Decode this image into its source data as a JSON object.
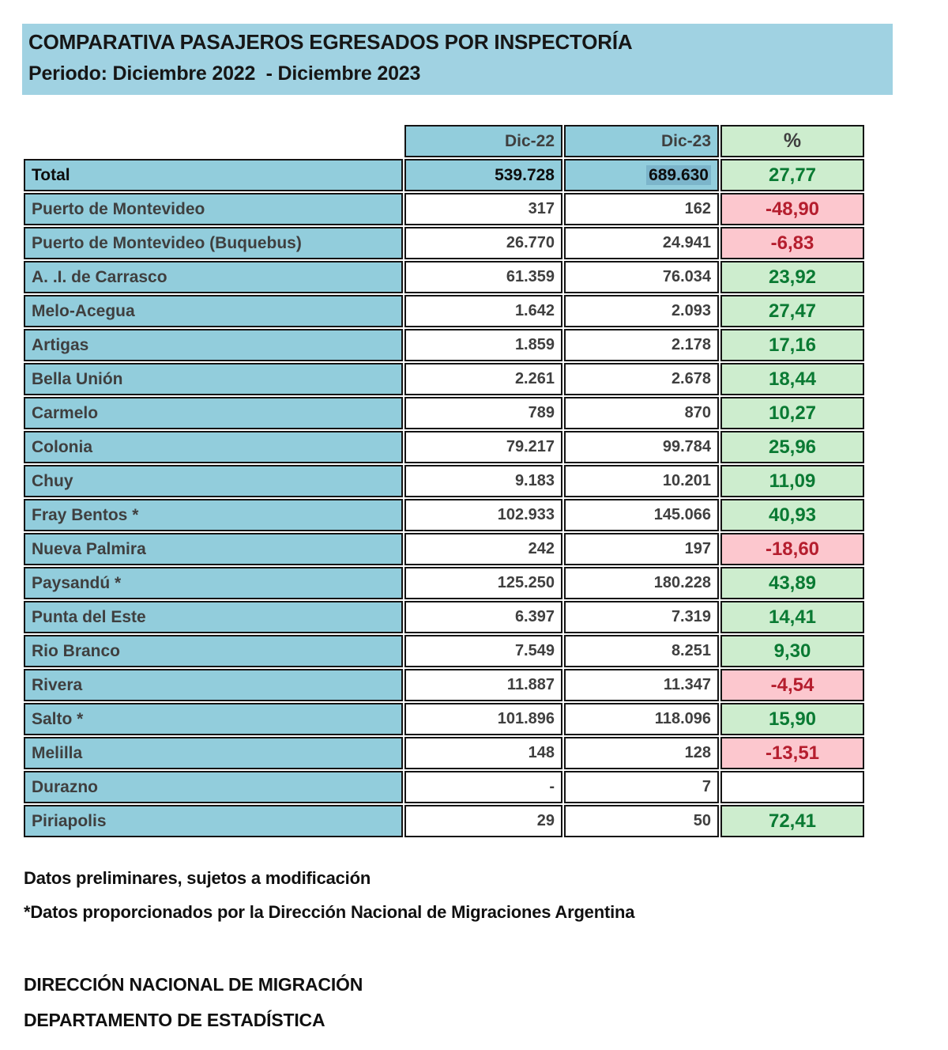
{
  "banner": {
    "title": "COMPARATIVA PASAJEROS EGRESADOS POR INSPECTORÍA",
    "subtitle": "Periodo: Diciembre 2022  - Diciembre 2023"
  },
  "table": {
    "columns": [
      "Dic-22",
      "Dic-23",
      "%"
    ],
    "rows": [
      {
        "label": "Total",
        "dic22": "539.728",
        "dic23": "689.630",
        "pct": "27,77",
        "trend": "up",
        "is_total": true,
        "highlight_dic23": true
      },
      {
        "label": "Puerto de Montevideo",
        "dic22": "317",
        "dic23": "162",
        "pct": "-48,90",
        "trend": "down"
      },
      {
        "label": "Puerto de Montevideo (Buquebus)",
        "dic22": "26.770",
        "dic23": "24.941",
        "pct": "-6,83",
        "trend": "down"
      },
      {
        "label": "A. .I. de Carrasco",
        "dic22": "61.359",
        "dic23": "76.034",
        "pct": "23,92",
        "trend": "up"
      },
      {
        "label": "Melo-Acegua",
        "dic22": "1.642",
        "dic23": "2.093",
        "pct": "27,47",
        "trend": "up"
      },
      {
        "label": "Artigas",
        "dic22": "1.859",
        "dic23": "2.178",
        "pct": "17,16",
        "trend": "up"
      },
      {
        "label": "Bella Unión",
        "dic22": "2.261",
        "dic23": "2.678",
        "pct": "18,44",
        "trend": "up"
      },
      {
        "label": "Carmelo",
        "dic22": "789",
        "dic23": "870",
        "pct": "10,27",
        "trend": "up"
      },
      {
        "label": "Colonia",
        "dic22": "79.217",
        "dic23": "99.784",
        "pct": "25,96",
        "trend": "up"
      },
      {
        "label": "Chuy",
        "dic22": "9.183",
        "dic23": "10.201",
        "pct": "11,09",
        "trend": "up"
      },
      {
        "label": "Fray Bentos *",
        "dic22": "102.933",
        "dic23": "145.066",
        "pct": "40,93",
        "trend": "up"
      },
      {
        "label": "Nueva Palmira",
        "dic22": "242",
        "dic23": "197",
        "pct": "-18,60",
        "trend": "down"
      },
      {
        "label": "Paysandú *",
        "dic22": "125.250",
        "dic23": "180.228",
        "pct": "43,89",
        "trend": "up"
      },
      {
        "label": "Punta del Este",
        "dic22": "6.397",
        "dic23": "7.319",
        "pct": "14,41",
        "trend": "up"
      },
      {
        "label": "Rio Branco",
        "dic22": "7.549",
        "dic23": "8.251",
        "pct": "9,30",
        "trend": "up"
      },
      {
        "label": "Rivera",
        "dic22": "11.887",
        "dic23": "11.347",
        "pct": "-4,54",
        "trend": "down"
      },
      {
        "label": "Salto *",
        "dic22": "101.896",
        "dic23": "118.096",
        "pct": "15,90",
        "trend": "up"
      },
      {
        "label": "Melilla",
        "dic22": "148",
        "dic23": "128",
        "pct": "-13,51",
        "trend": "down"
      },
      {
        "label": "Durazno",
        "dic22": "-",
        "dic23": "7",
        "pct": "",
        "trend": "none"
      },
      {
        "label": "Piriapolis",
        "dic22": "29",
        "dic23": "50",
        "pct": "72,41",
        "trend": "up"
      }
    ]
  },
  "footnotes": [
    "Datos preliminares, sujetos a modificación",
    "*Datos proporcionados por la Dirección Nacional de Migraciones Argentina"
  ],
  "signature": [
    "DIRECCIÓN NACIONAL DE MIGRACIÓN",
    "DEPARTAMENTO DE ESTADÍSTICA"
  ],
  "colors": {
    "banner_blue": "#A0D2E2",
    "cell_blue": "#92CDDC",
    "highlight_blue": "#7CB5CB",
    "green_bg": "#CDEDCE",
    "green_text": "#0A7A33",
    "red_bg": "#FCC7CE",
    "red_text": "#B51E2E",
    "ink": "#3F3F3F"
  }
}
